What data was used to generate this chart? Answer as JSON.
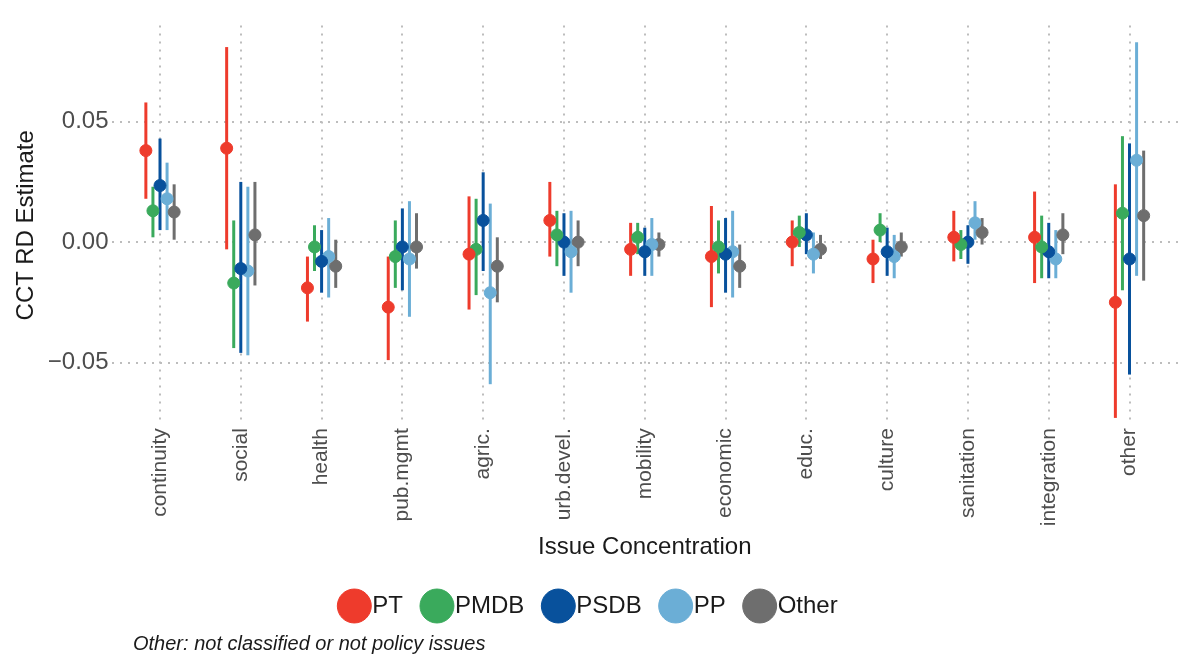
{
  "chart_data": {
    "type": "scatter",
    "xlabel": "Issue Concentration",
    "ylabel": "CCT RD Estimate",
    "categories": [
      "continuity",
      "social",
      "health",
      "pub.mgmt",
      "agric.",
      "urb.devel.",
      "mobility",
      "economic",
      "educ.",
      "culture",
      "sanitation",
      "integration",
      "other"
    ],
    "series": [
      {
        "name": "PT",
        "color": "#ee3b2c",
        "values": [
          0.038,
          0.039,
          -0.019,
          -0.027,
          -0.005,
          0.009,
          -0.003,
          -0.006,
          0.0,
          -0.007,
          0.002,
          0.002,
          -0.025
        ],
        "errors": [
          [
            0.018,
            0.058
          ],
          [
            -0.003,
            0.081
          ],
          [
            -0.033,
            -0.006
          ],
          [
            -0.049,
            -0.006
          ],
          [
            -0.028,
            0.019
          ],
          [
            -0.006,
            0.025
          ],
          [
            -0.014,
            0.008
          ],
          [
            -0.027,
            0.015
          ],
          [
            -0.01,
            0.009
          ],
          [
            -0.017,
            0.001
          ],
          [
            -0.008,
            0.013
          ],
          [
            -0.017,
            0.021
          ],
          [
            -0.073,
            0.024
          ]
        ]
      },
      {
        "name": "PMDB",
        "color": "#3aaa5c",
        "values": [
          0.013,
          -0.017,
          -0.002,
          -0.006,
          -0.003,
          0.003,
          0.002,
          -0.002,
          0.004,
          0.005,
          -0.001,
          -0.002,
          0.012
        ],
        "errors": [
          [
            0.002,
            0.023
          ],
          [
            -0.044,
            0.009
          ],
          [
            -0.012,
            0.007
          ],
          [
            -0.019,
            0.009
          ],
          [
            -0.022,
            0.018
          ],
          [
            -0.01,
            0.013
          ],
          [
            -0.005,
            0.008
          ],
          [
            -0.013,
            0.009
          ],
          [
            -0.002,
            0.011
          ],
          [
            0.0,
            0.012
          ],
          [
            -0.007,
            0.005
          ],
          [
            -0.015,
            0.011
          ],
          [
            -0.02,
            0.044
          ]
        ]
      },
      {
        "name": "PSDB",
        "color": "#08519c",
        "values": [
          0.0235,
          -0.011,
          -0.008,
          -0.002,
          0.009,
          0.0,
          -0.004,
          -0.005,
          0.003,
          -0.004,
          0.0,
          -0.004,
          -0.007
        ],
        "errors": [
          [
            0.005,
            0.043
          ],
          [
            -0.046,
            0.025
          ],
          [
            -0.021,
            0.005
          ],
          [
            -0.02,
            0.014
          ],
          [
            -0.012,
            0.029
          ],
          [
            -0.014,
            0.012
          ],
          [
            -0.014,
            0.006
          ],
          [
            -0.021,
            0.01
          ],
          [
            -0.005,
            0.012
          ],
          [
            -0.014,
            0.006
          ],
          [
            -0.009,
            0.007
          ],
          [
            -0.015,
            0.008
          ],
          [
            -0.055,
            0.041
          ]
        ]
      },
      {
        "name": "PP",
        "color": "#6baed6",
        "values": [
          0.018,
          -0.012,
          -0.006,
          -0.007,
          -0.021,
          -0.004,
          -0.001,
          -0.004,
          -0.005,
          -0.006,
          0.008,
          -0.007,
          0.034
        ],
        "errors": [
          [
            0.005,
            0.033
          ],
          [
            -0.047,
            0.023
          ],
          [
            -0.023,
            0.01
          ],
          [
            -0.031,
            0.017
          ],
          [
            -0.059,
            0.016
          ],
          [
            -0.021,
            0.013
          ],
          [
            -0.014,
            0.01
          ],
          [
            -0.023,
            0.013
          ],
          [
            -0.013,
            0.004
          ],
          [
            -0.015,
            0.003
          ],
          [
            0.001,
            0.017
          ],
          [
            -0.015,
            0.005
          ],
          [
            -0.014,
            0.083
          ]
        ]
      },
      {
        "name": "Other",
        "color": "#6e6e6e",
        "values": [
          0.0125,
          0.003,
          -0.01,
          -0.002,
          -0.01,
          0.0,
          -0.001,
          -0.01,
          -0.003,
          -0.002,
          0.004,
          0.003,
          0.011
        ],
        "errors": [
          [
            0.001,
            0.024
          ],
          [
            -0.018,
            0.025
          ],
          [
            -0.019,
            0.001
          ],
          [
            -0.011,
            0.012
          ],
          [
            -0.025,
            0.002
          ],
          [
            -0.01,
            0.009
          ],
          [
            -0.006,
            0.004
          ],
          [
            -0.019,
            -0.001
          ],
          [
            -0.007,
            0.003
          ],
          [
            -0.006,
            0.004
          ],
          [
            -0.001,
            0.01
          ],
          [
            -0.005,
            0.012
          ],
          [
            -0.016,
            0.038
          ]
        ]
      }
    ],
    "ylim": [
      -0.076,
      0.09
    ],
    "yticks": [
      0.05,
      {
        "value": 0,
        "label": "0.00"
      },
      {
        "value": -0.05,
        "label": "−0.05"
      }
    ],
    "grid": true,
    "legend": "bottom",
    "marker": "circle",
    "annotations": [
      "Other: not classified or not policy issues"
    ]
  }
}
